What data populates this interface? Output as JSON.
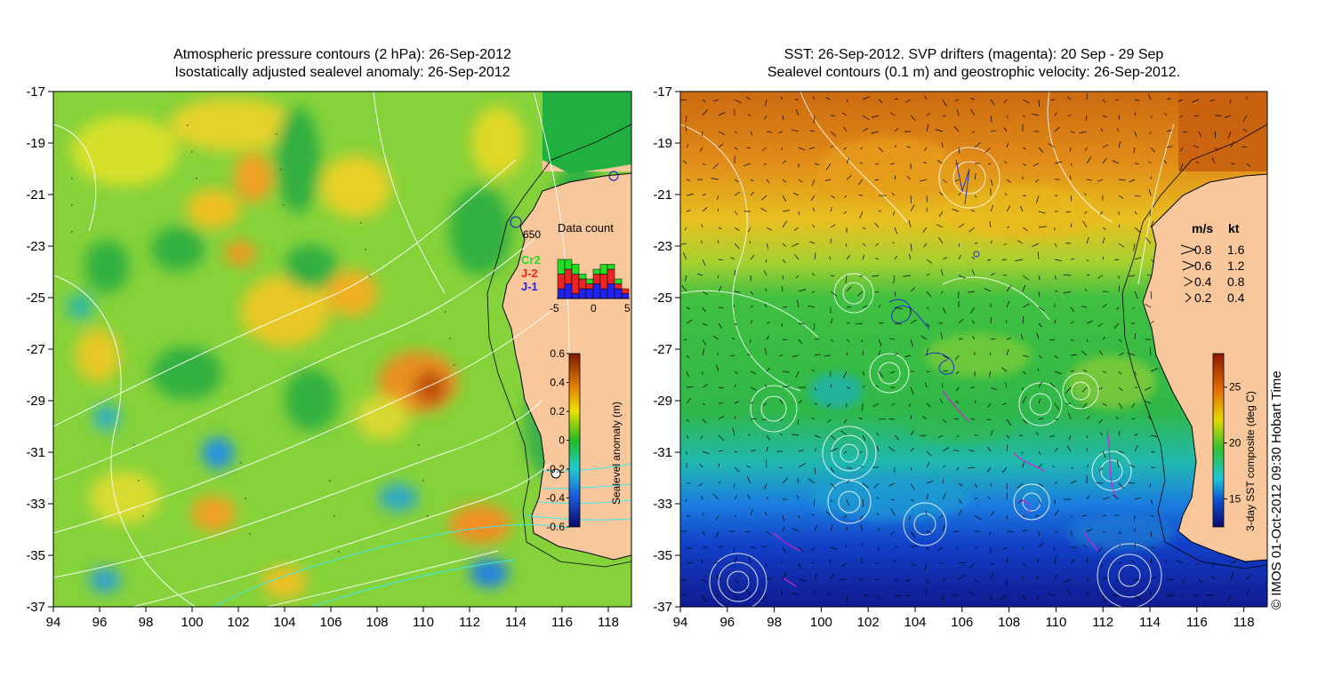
{
  "left_panel": {
    "title_line1": "Atmospheric pressure contours (2 hPa): 26-Sep-2012",
    "title_line2": "Isostatically adjusted sealevel anomaly: 26-Sep-2012",
    "x_ticks": [
      "94",
      "96",
      "98",
      "100",
      "102",
      "104",
      "106",
      "108",
      "110",
      "112",
      "114",
      "116",
      "118"
    ],
    "y_ticks": [
      "-17",
      "-19",
      "-21",
      "-23",
      "-25",
      "-27",
      "-29",
      "-31",
      "-33",
      "-35",
      "-37"
    ],
    "depth_label": "650",
    "inset": {
      "title": "Data count",
      "legend": [
        {
          "label": "Cr2",
          "color": "#22dd22"
        },
        {
          "label": "J-2",
          "color": "#ee2222"
        },
        {
          "label": "J-1",
          "color": "#2222ee"
        }
      ],
      "x_ticks": [
        "-5",
        "0",
        "5"
      ],
      "bars": [
        {
          "j1": 2,
          "j2": 3,
          "cr2": 3
        },
        {
          "j1": 3,
          "j2": 3,
          "cr2": 2
        },
        {
          "j1": 1,
          "j2": 4,
          "cr2": 2
        },
        {
          "j1": 2,
          "j2": 2,
          "cr2": 1
        },
        {
          "j1": 2,
          "j2": 1,
          "cr2": 1
        },
        {
          "j1": 3,
          "j2": 2,
          "cr2": 1
        },
        {
          "j1": 2,
          "j2": 3,
          "cr2": 2
        },
        {
          "j1": 3,
          "j2": 3,
          "cr2": 1
        },
        {
          "j1": 2,
          "j2": 1,
          "cr2": 1
        },
        {
          "j1": 1,
          "j2": 1,
          "cr2": 0
        }
      ]
    },
    "colorbar": {
      "label": "Sealevel anomaly (m)",
      "ticks": [
        "0.6",
        "0.4",
        "0.2",
        "0",
        "-0.2",
        "-0.4",
        "-0.6"
      ]
    }
  },
  "right_panel": {
    "title_line1": "SST: 26-Sep-2012. SVP drifters (magenta): 20 Sep - 29 Sep",
    "title_line2": "Sealevel contours (0.1 m) and geostrophic velocity: 26-Sep-2012.",
    "x_ticks": [
      "94",
      "96",
      "98",
      "100",
      "102",
      "104",
      "106",
      "108",
      "110",
      "112",
      "114",
      "116",
      "118"
    ],
    "y_ticks": [
      "-17",
      "-19",
      "-21",
      "-23",
      "-25",
      "-27",
      "-29",
      "-31",
      "-33",
      "-35",
      "-37"
    ],
    "vector_legend": {
      "header_ms": "m/s",
      "header_kt": "kt",
      "rows": [
        {
          "ms": "0.8",
          "kt": "1.6"
        },
        {
          "ms": "0.6",
          "kt": "1.2"
        },
        {
          "ms": "0.4",
          "kt": "0.8"
        },
        {
          "ms": "0.2",
          "kt": "0.4"
        }
      ]
    },
    "colorbar": {
      "label": "3-day SST composite (deg C)",
      "ticks": [
        "25",
        "20",
        "15"
      ]
    }
  },
  "credit": "© IMOS 01-Oct-2012 09:30 Hobart Time"
}
